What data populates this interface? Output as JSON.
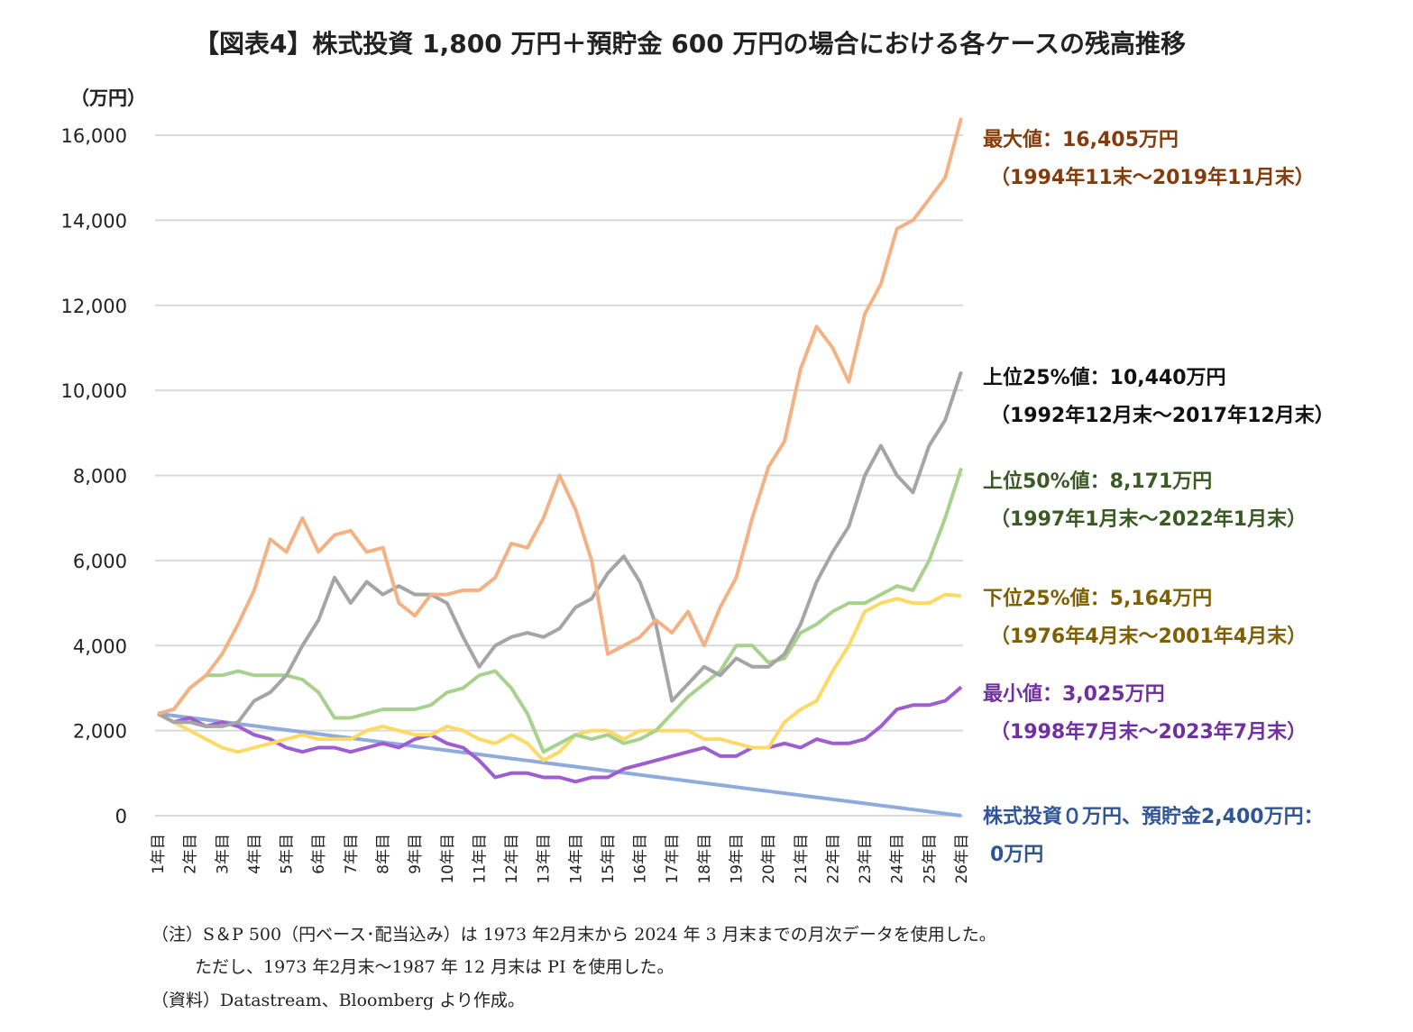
{
  "title": "【図表4】株式投資 1,800 万円＋預貯金 600 万円の場合における各ケースの残高推移",
  "chart_data": {
    "type": "line",
    "title": "【図表4】株式投資 1,800 万円＋預貯金 600 万円の場合における各ケースの残高推移",
    "ylabel": "（万円）",
    "ylim": [
      0,
      16000
    ],
    "yticks": [
      "0",
      "2,000",
      "4,000",
      "6,000",
      "8,000",
      "10,000",
      "12,000",
      "14,000",
      "16,000"
    ],
    "ytick_values": [
      0,
      2000,
      4000,
      6000,
      8000,
      10000,
      12000,
      14000,
      16000
    ],
    "xlim": [
      1,
      26
    ],
    "categories": [
      "1年目",
      "2年目",
      "3年目",
      "4年目",
      "5年目",
      "6年目",
      "7年目",
      "8年目",
      "9年目",
      "10年目",
      "11年目",
      "12年目",
      "13年目",
      "14年目",
      "15年目",
      "16年目",
      "17年目",
      "18年目",
      "19年目",
      "20年目",
      "21年目",
      "22年目",
      "23年目",
      "24年目",
      "25年目",
      "26年目"
    ],
    "grid": "horizontal",
    "legend": "none (right-side annotations)",
    "x": [
      1,
      1.5,
      2,
      2.5,
      3,
      3.5,
      4,
      4.5,
      5,
      5.5,
      6,
      6.5,
      7,
      7.5,
      8,
      8.5,
      9,
      9.5,
      10,
      10.5,
      11,
      11.5,
      12,
      12.5,
      13,
      13.5,
      14,
      14.5,
      15,
      15.5,
      16,
      16.5,
      17,
      17.5,
      18,
      18.5,
      19,
      19.5,
      20,
      20.5,
      21,
      21.5,
      22,
      22.5,
      23,
      23.5,
      24,
      24.5,
      25,
      25.5,
      26
    ],
    "series": [
      {
        "color": "#f4b183",
        "values": [
          2400,
          2500,
          3000,
          3300,
          3800,
          4500,
          5300,
          6500,
          6200,
          7000,
          6200,
          6600,
          6700,
          6200,
          6300,
          5000,
          4700,
          5200,
          5200,
          5300,
          5300,
          5600,
          6400,
          6300,
          7000,
          8000,
          7200,
          6000,
          3800,
          4000,
          4200,
          4600,
          4300,
          4800,
          4000,
          4900,
          5600,
          7000,
          8200,
          8800,
          10500,
          11500,
          11000,
          10200,
          11800,
          12500,
          13800,
          14000,
          14500,
          15000,
          16405
        ]
      },
      {
        "color": "#a5a5a5",
        "values": [
          2400,
          2200,
          2200,
          2100,
          2100,
          2200,
          2700,
          2900,
          3300,
          4000,
          4600,
          5600,
          5000,
          5500,
          5200,
          5400,
          5200,
          5200,
          5000,
          4200,
          3500,
          4000,
          4200,
          4300,
          4200,
          4400,
          4900,
          5100,
          5700,
          6100,
          5500,
          4500,
          2700,
          3100,
          3500,
          3300,
          3700,
          3500,
          3500,
          3800,
          4500,
          5500,
          6200,
          6800,
          8000,
          8700,
          8000,
          7600,
          8700,
          9300,
          10440
        ]
      },
      {
        "color": "#a9d18e",
        "values": [
          2400,
          2500,
          3000,
          3300,
          3300,
          3400,
          3300,
          3300,
          3300,
          3200,
          2900,
          2300,
          2300,
          2400,
          2500,
          2500,
          2500,
          2600,
          2900,
          3000,
          3300,
          3400,
          3000,
          2400,
          1500,
          1700,
          1900,
          1800,
          1900,
          1700,
          1800,
          2000,
          2400,
          2800,
          3100,
          3400,
          4000,
          4000,
          3600,
          3700,
          4300,
          4500,
          4800,
          5000,
          5000,
          5200,
          5400,
          5300,
          6000,
          7000,
          8171
        ]
      },
      {
        "color": "#ffd966",
        "values": [
          2400,
          2200,
          2000,
          1800,
          1600,
          1500,
          1600,
          1700,
          1800,
          1900,
          1800,
          1800,
          1800,
          2000,
          2100,
          2000,
          1900,
          1900,
          2100,
          2000,
          1800,
          1700,
          1900,
          1700,
          1300,
          1500,
          1900,
          2000,
          2000,
          1800,
          2000,
          2000,
          2000,
          2000,
          1800,
          1800,
          1700,
          1600,
          1600,
          2200,
          2500,
          2700,
          3400,
          4000,
          4800,
          5000,
          5100,
          5000,
          5000,
          5200,
          5164
        ]
      },
      {
        "color": "#9e5ecf",
        "values": [
          2400,
          2200,
          2300,
          2100,
          2200,
          2100,
          1900,
          1800,
          1600,
          1500,
          1600,
          1600,
          1500,
          1600,
          1700,
          1600,
          1800,
          1900,
          1700,
          1600,
          1300,
          900,
          1000,
          1000,
          900,
          900,
          800,
          900,
          900,
          1100,
          1200,
          1300,
          1400,
          1500,
          1600,
          1400,
          1400,
          1600,
          1600,
          1700,
          1600,
          1800,
          1700,
          1700,
          1800,
          2100,
          2500,
          2600,
          2600,
          2700,
          3025
        ]
      },
      {
        "color": "#8faadc",
        "values": [
          2400,
          2352,
          2304,
          2256,
          2208,
          2160,
          2112,
          2064,
          2016,
          1968,
          1920,
          1872,
          1824,
          1776,
          1728,
          1680,
          1632,
          1584,
          1536,
          1488,
          1440,
          1392,
          1344,
          1296,
          1248,
          1200,
          1152,
          1104,
          1056,
          1008,
          960,
          912,
          864,
          816,
          768,
          720,
          672,
          624,
          576,
          528,
          480,
          432,
          384,
          336,
          288,
          240,
          192,
          144,
          96,
          48,
          0
        ]
      }
    ],
    "annotations": [
      {
        "line1": "最大値：16,405万円",
        "line2": "（1994年11末～2019年11月末）",
        "color": "#843c0c"
      },
      {
        "line1": "上位25%値：10,440万円",
        "line2": "（1992年12月末～2017年12月末）",
        "color": "#111111"
      },
      {
        "line1": "上位50%値：8,171万円",
        "line2": "（1997年1月末～2022年1月末）",
        "color": "#3a5a24"
      },
      {
        "line1": "下位25%値：5,164万円",
        "line2": "（1976年4月末～2001年4月末）",
        "color": "#7f6000"
      },
      {
        "line1": "最小値：3,025万円",
        "line2": "（1998年7月末～2023年7月末）",
        "color": "#7030a0"
      },
      {
        "line1": "株式投資０万円、預貯金2,400万円：",
        "line2": "0万円",
        "color": "#2f5597"
      }
    ]
  },
  "notes": [
    "（注）S＆P 500（円ベース･配当込み）は 1973 年2月末から 2024 年 3 月末までの月次データを使用した。",
    "ただし、1973 年2月末～1987 年 12 月末は PI を使用した。",
    "（資料）Datastream、Bloomberg より作成。"
  ]
}
